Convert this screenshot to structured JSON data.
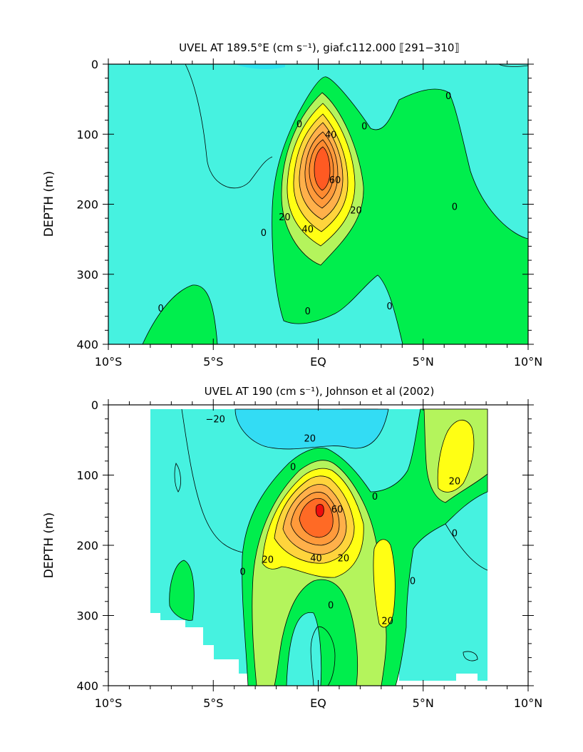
{
  "chart_data": [
    {
      "type": "contour",
      "title": "UVEL AT 189.5°E (cm s⁻¹), giaf.c112.000 ⟦291−310⟧",
      "ylabel": "DEPTH (m)",
      "xlabel": "",
      "x_ticks": [
        "10°S",
        "5°S",
        "EQ",
        "5°N",
        "10°N"
      ],
      "x_tick_values": [
        -10,
        -5,
        0,
        5,
        10
      ],
      "y_ticks": [
        "0",
        "100",
        "200",
        "300",
        "400"
      ],
      "y_tick_values": [
        0,
        100,
        200,
        300,
        400
      ],
      "xlim": [
        -10,
        10
      ],
      "ylim": [
        400,
        0
      ],
      "contour_interval": 10,
      "contour_labels": [
        {
          "text": "0",
          "lat": -0.9,
          "depth": 85
        },
        {
          "text": "40",
          "lat": 0.6,
          "depth": 100
        },
        {
          "text": "0",
          "lat": 2.2,
          "depth": 88
        },
        {
          "text": "0",
          "lat": 6.2,
          "depth": 45
        },
        {
          "text": "60",
          "lat": 0.8,
          "depth": 165
        },
        {
          "text": "20",
          "lat": -1.6,
          "depth": 218
        },
        {
          "text": "20",
          "lat": 1.8,
          "depth": 208
        },
        {
          "text": "40",
          "lat": -0.5,
          "depth": 235
        },
        {
          "text": "0",
          "lat": -2.6,
          "depth": 240
        },
        {
          "text": "0",
          "lat": 6.5,
          "depth": 203
        },
        {
          "text": "0",
          "lat": -0.5,
          "depth": 352
        },
        {
          "text": "0",
          "lat": 3.4,
          "depth": 345
        },
        {
          "text": "0",
          "lat": -7.5,
          "depth": 348
        }
      ]
    },
    {
      "type": "contour",
      "title": "UVEL AT 190 (cm s⁻¹), Johnson et al (2002)",
      "ylabel": "DEPTH (m)",
      "xlabel": "",
      "x_ticks": [
        "10°S",
        "5°S",
        "EQ",
        "5°N",
        "10°N"
      ],
      "x_tick_values": [
        -10,
        -5,
        0,
        5,
        10
      ],
      "y_ticks": [
        "0",
        "100",
        "200",
        "300",
        "400"
      ],
      "y_tick_values": [
        0,
        100,
        200,
        300,
        400
      ],
      "xlim": [
        -10,
        10
      ],
      "ylim": [
        400,
        0
      ],
      "data_lat_range": [
        -8,
        8
      ],
      "contour_interval": 10,
      "contour_labels": [
        {
          "text": "−20",
          "lat": -4.9,
          "depth": 20
        },
        {
          "text": "20",
          "lat": -0.4,
          "depth": 47
        },
        {
          "text": "0",
          "lat": -1.2,
          "depth": 88
        },
        {
          "text": "20",
          "lat": 6.5,
          "depth": 108
        },
        {
          "text": "0",
          "lat": 2.7,
          "depth": 130
        },
        {
          "text": "60",
          "lat": 0.9,
          "depth": 148
        },
        {
          "text": "0",
          "lat": 6.5,
          "depth": 182
        },
        {
          "text": "20",
          "lat": -2.4,
          "depth": 220
        },
        {
          "text": "40",
          "lat": -0.1,
          "depth": 218
        },
        {
          "text": "20",
          "lat": 1.2,
          "depth": 218
        },
        {
          "text": "0",
          "lat": -3.6,
          "depth": 237
        },
        {
          "text": "0",
          "lat": 4.5,
          "depth": 250
        },
        {
          "text": "0",
          "lat": 0.6,
          "depth": 285
        },
        {
          "text": "20",
          "lat": 3.3,
          "depth": 307
        }
      ]
    }
  ],
  "colors": {
    "neg_20": "#29cdf7",
    "neg_10": "#63f7e8",
    "band_0_10": "#00ee4d",
    "band_10_20": "#b4f45c",
    "band_20_30": "#ffff14",
    "band_30_40": "#ffd43c",
    "band_40_50": "#ffb04a",
    "band_50_60": "#ff9a3b",
    "band_60_plus": "#ff5a22",
    "band_core": "#ee0d0d",
    "background_negative": "#38f0e0",
    "lines": "#000000"
  }
}
